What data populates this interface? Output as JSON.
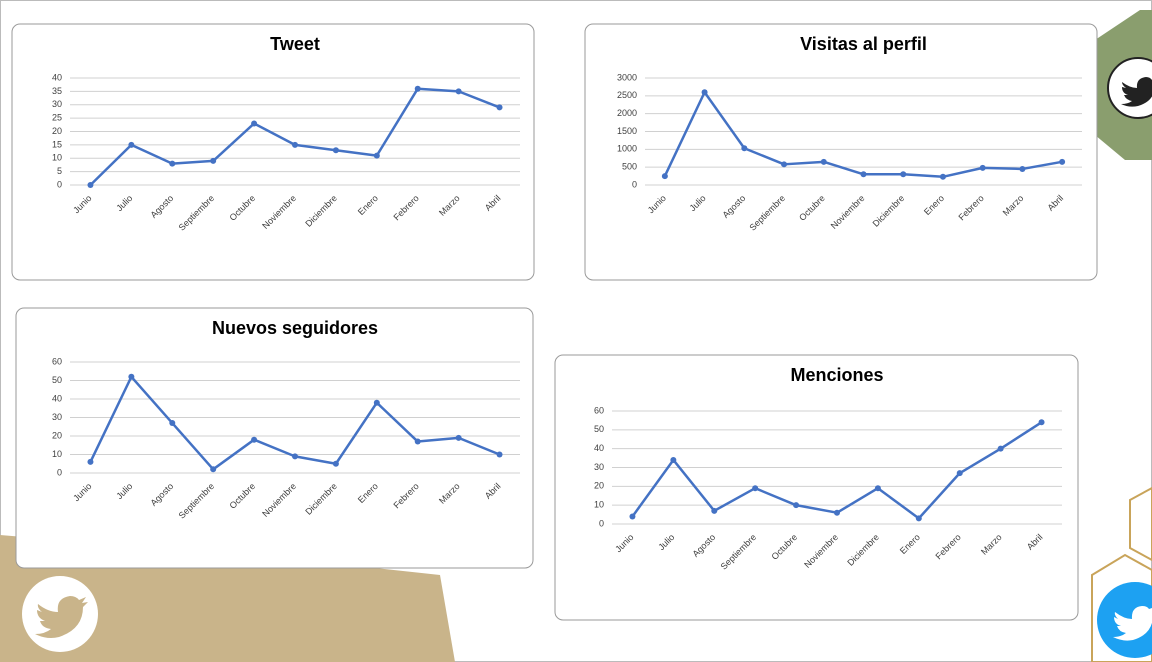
{
  "chart_data": [
    {
      "type": "line",
      "title": "Tweet",
      "categories": [
        "Junio",
        "Julio",
        "Agosto",
        "Septiembre",
        "Octubre",
        "Noviembre",
        "Diciembre",
        "Enero",
        "Febrero",
        "Marzo",
        "Abril"
      ],
      "values": [
        0,
        15,
        8,
        9,
        23,
        15,
        13,
        11,
        36,
        35,
        29
      ],
      "color": "#4472c4",
      "ylim": [
        0,
        40
      ],
      "yticks": [
        0,
        5,
        10,
        15,
        20,
        25,
        30,
        35,
        40
      ],
      "grid": true
    },
    {
      "type": "line",
      "title": "Visitas al perfil",
      "categories": [
        "Junio",
        "Julio",
        "Agosto",
        "Septiembre",
        "Octubre",
        "Noviembre",
        "Diciembre",
        "Enero",
        "Febrero",
        "Marzo",
        "Abril"
      ],
      "values": [
        250,
        2600,
        1030,
        580,
        650,
        300,
        300,
        230,
        480,
        450,
        650
      ],
      "color": "#4472c4",
      "ylim": [
        0,
        3000
      ],
      "yticks": [
        0,
        500,
        1000,
        1500,
        2000,
        2500,
        3000
      ],
      "grid": true
    },
    {
      "type": "line",
      "title": "Nuevos seguidores",
      "categories": [
        "Junio",
        "Julio",
        "Agosto",
        "Septiembre",
        "Octubre",
        "Noviembre",
        "Diciembre",
        "Enero",
        "Febrero",
        "Marzo",
        "Abril"
      ],
      "values": [
        6,
        52,
        27,
        2,
        18,
        9,
        5,
        38,
        17,
        19,
        10
      ],
      "color": "#4472c4",
      "ylim": [
        0,
        60
      ],
      "yticks": [
        0,
        10,
        20,
        30,
        40,
        50,
        60
      ],
      "grid": true
    },
    {
      "type": "line",
      "title": "Menciones",
      "categories": [
        "Junio",
        "Julio",
        "Agosto",
        "Septiembre",
        "Octubre",
        "Noviembre",
        "Diciembre",
        "Enero",
        "Febrero",
        "Marzo",
        "Abril"
      ],
      "values": [
        4,
        34,
        7,
        19,
        10,
        6,
        19,
        3,
        27,
        40,
        54
      ],
      "color": "#4472c4",
      "ylim": [
        0,
        60
      ],
      "yticks": [
        0,
        10,
        20,
        30,
        40,
        50,
        60
      ],
      "grid": true
    }
  ]
}
